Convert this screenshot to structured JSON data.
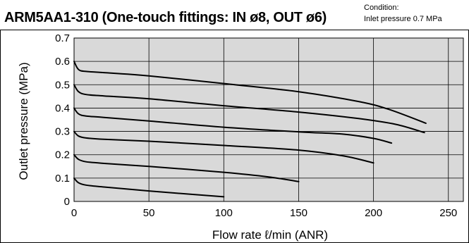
{
  "header": {
    "title": "ARM5AA1-310 (One-touch fittings: IN ø8, OUT ø6)",
    "condition_label": "Condition:",
    "condition_value": "Inlet pressure  0.7 MPa"
  },
  "chart_data": {
    "type": "line",
    "title": "ARM5AA1-310 (One-touch fittings: IN ø8, OUT ø6)",
    "xlabel": "Flow rate ℓ/min (ANR)",
    "ylabel": "Outlet pressure (MPa)",
    "xlim": [
      0,
      260
    ],
    "ylim": [
      0,
      0.7
    ],
    "x_ticks": [
      "0",
      "50",
      "100",
      "150",
      "200",
      "250"
    ],
    "y_ticks": [
      "0",
      "0.1",
      "0.2",
      "0.3",
      "0.4",
      "0.5",
      "0.6",
      "0.7"
    ],
    "grid": true,
    "background_color": "#d9d9d9",
    "line_color": "#000000",
    "series": [
      {
        "x": [
          0,
          3,
          8,
          20,
          50,
          80,
          100
        ],
        "y": [
          0.1,
          0.08,
          0.07,
          0.062,
          0.045,
          0.03,
          0.02
        ]
      },
      {
        "x": [
          0,
          3,
          8,
          20,
          50,
          100,
          130,
          150
        ],
        "y": [
          0.2,
          0.18,
          0.17,
          0.163,
          0.15,
          0.125,
          0.105,
          0.085
        ]
      },
      {
        "x": [
          0,
          3,
          8,
          20,
          50,
          100,
          150,
          180,
          200
        ],
        "y": [
          0.3,
          0.28,
          0.272,
          0.266,
          0.258,
          0.24,
          0.22,
          0.195,
          0.165
        ]
      },
      {
        "x": [
          0,
          3,
          8,
          20,
          50,
          100,
          150,
          180,
          200,
          212
        ],
        "y": [
          0.4,
          0.375,
          0.366,
          0.36,
          0.345,
          0.318,
          0.298,
          0.288,
          0.27,
          0.25
        ]
      },
      {
        "x": [
          0,
          3,
          8,
          20,
          50,
          100,
          150,
          190,
          215,
          234
        ],
        "y": [
          0.5,
          0.47,
          0.458,
          0.452,
          0.44,
          0.41,
          0.383,
          0.355,
          0.33,
          0.295
        ]
      },
      {
        "x": [
          0,
          3,
          8,
          20,
          50,
          100,
          150,
          190,
          210,
          235
        ],
        "y": [
          0.6,
          0.565,
          0.557,
          0.552,
          0.538,
          0.505,
          0.47,
          0.428,
          0.395,
          0.335
        ]
      }
    ]
  }
}
